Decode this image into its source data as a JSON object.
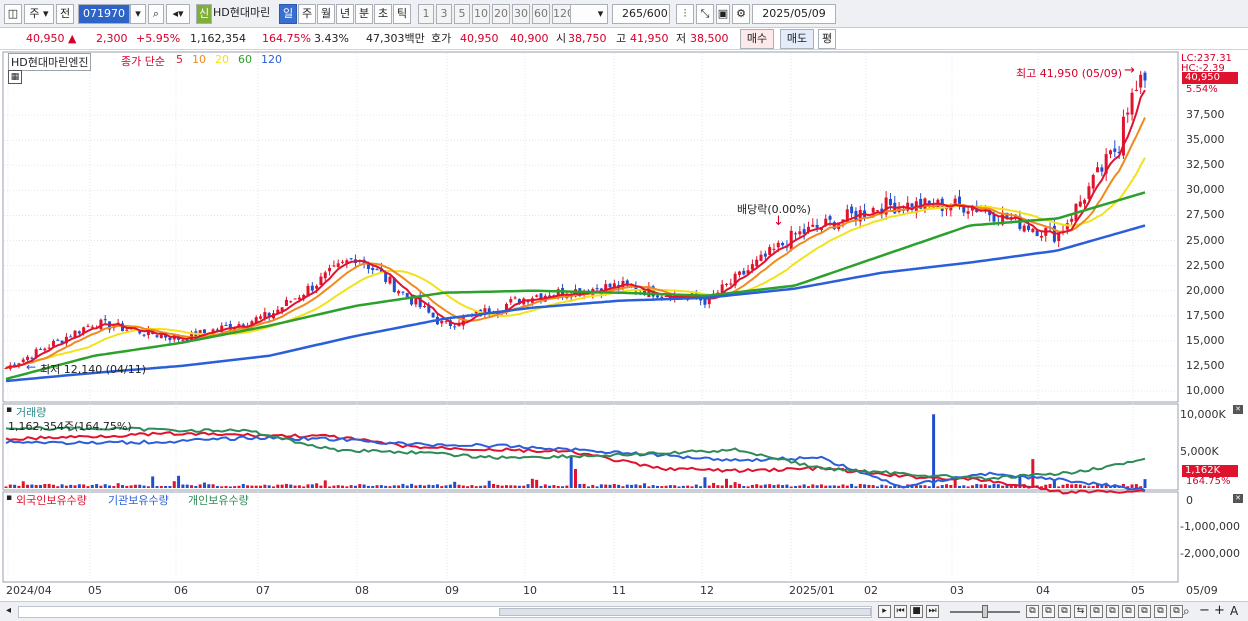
{
  "toolbar": {
    "market": "주",
    "prev_label": "전",
    "code": "071970",
    "credit_label": "신",
    "stock_name": "HD현대마린",
    "periods": [
      "일",
      "주",
      "월",
      "년",
      "분",
      "초",
      "틱"
    ],
    "active_period": "일",
    "intervals": [
      "1",
      "3",
      "5",
      "10",
      "20",
      "30",
      "60",
      "120"
    ],
    "count": "265",
    "count_total": "/600",
    "date": "2025/05/09"
  },
  "quote": {
    "price": "40,950",
    "change_arrow": "▲",
    "change": "2,300",
    "change_pct": "+5.95%",
    "volume": "1,162,354",
    "volume_ratio": "164.75%",
    "turnover": "3.43%",
    "amount": "47,303백만",
    "bid_label": "호가",
    "ask_price": "40,950",
    "bid_price": "40,900",
    "open_label": "시",
    "open": "38,750",
    "high_label": "고",
    "high": "41,950",
    "low_label": "저",
    "low": "38,500",
    "buy_button": "매수",
    "sell_button": "매도",
    "eval_button": "평"
  },
  "price_panel": {
    "stock_label": "HD현대마린엔진",
    "ma_title": "종가 단순",
    "ma_periods": [
      {
        "label": "5",
        "color": "#e0132f"
      },
      {
        "label": "10",
        "color": "#f08a1e"
      },
      {
        "label": "20",
        "color": "#f2e21a"
      },
      {
        "label": "60",
        "color": "#2ca02c"
      },
      {
        "label": "120",
        "color": "#2b5fd9"
      }
    ],
    "lc_label": "LC:237.31",
    "hc_label": "HC:-2.39",
    "last_price_tag": "40,950",
    "last_pct_tag": "5.54%",
    "high_marker": "최고 41,950 (05/09)",
    "low_marker": "최저 12,140 (04/11)",
    "dividend_marker": "배당락(0.00%)",
    "y_ticks": [
      "37,500",
      "35,000",
      "32,500",
      "30,000",
      "27,500",
      "25,000",
      "22,500",
      "20,000",
      "17,500",
      "15,000",
      "12,500",
      "10,000"
    ]
  },
  "volume_panel": {
    "title": "거래량",
    "value_text": "1,162,354주(164.75%)",
    "y_ticks": [
      "10,000K",
      "5,000K"
    ],
    "last_tag": "1,162K",
    "last_pct": "164.75%"
  },
  "holding_panel": {
    "legend": [
      {
        "label": "외국인보유수량",
        "color": "#e0132f"
      },
      {
        "label": "기관보유수량",
        "color": "#2b5fd9"
      },
      {
        "label": "개인보유수량",
        "color": "#2e8b57"
      }
    ],
    "y_ticks": [
      "0",
      "-1,000,000",
      "-2,000,000"
    ]
  },
  "x_axis": [
    "2024/04",
    "05",
    "06",
    "07",
    "08",
    "09",
    "10",
    "11",
    "12",
    "2025/01",
    "02",
    "03",
    "04",
    "05",
    "05/09"
  ],
  "colors": {
    "up": "#e0132f",
    "down": "#1f4fcf",
    "ma5": "#e0132f",
    "ma10": "#f08a1e",
    "ma20": "#f2e21a",
    "ma60": "#2ca02c",
    "ma120": "#2b5fd9"
  },
  "chart_data": [
    {
      "type": "line",
      "title": "HD현대마린엔진",
      "x": [
        "2024/04",
        "05",
        "06",
        "07",
        "08",
        "09",
        "10",
        "11",
        "12",
        "2025/01",
        "02",
        "03",
        "04",
        "05"
      ],
      "series": [
        {
          "name": "5",
          "values": [
            12300,
            16800,
            15200,
            17500,
            23500,
            16500,
            19500,
            20500,
            19000,
            25500,
            28500,
            28500,
            25500,
            38500
          ]
        },
        {
          "name": "60",
          "values": [
            11200,
            13500,
            14800,
            16500,
            18500,
            19800,
            20000,
            19800,
            19500,
            20500,
            23500,
            26500,
            27200,
            29800
          ]
        },
        {
          "name": "120",
          "values": [
            11000,
            11800,
            12500,
            13500,
            15500,
            17200,
            18300,
            19000,
            19300,
            20200,
            21800,
            22800,
            24000,
            26500
          ]
        }
      ],
      "ylim": [
        10000,
        42000
      ]
    },
    {
      "type": "bar",
      "title": "거래량",
      "ylabel": "",
      "ylim": [
        0,
        10000000
      ]
    }
  ]
}
